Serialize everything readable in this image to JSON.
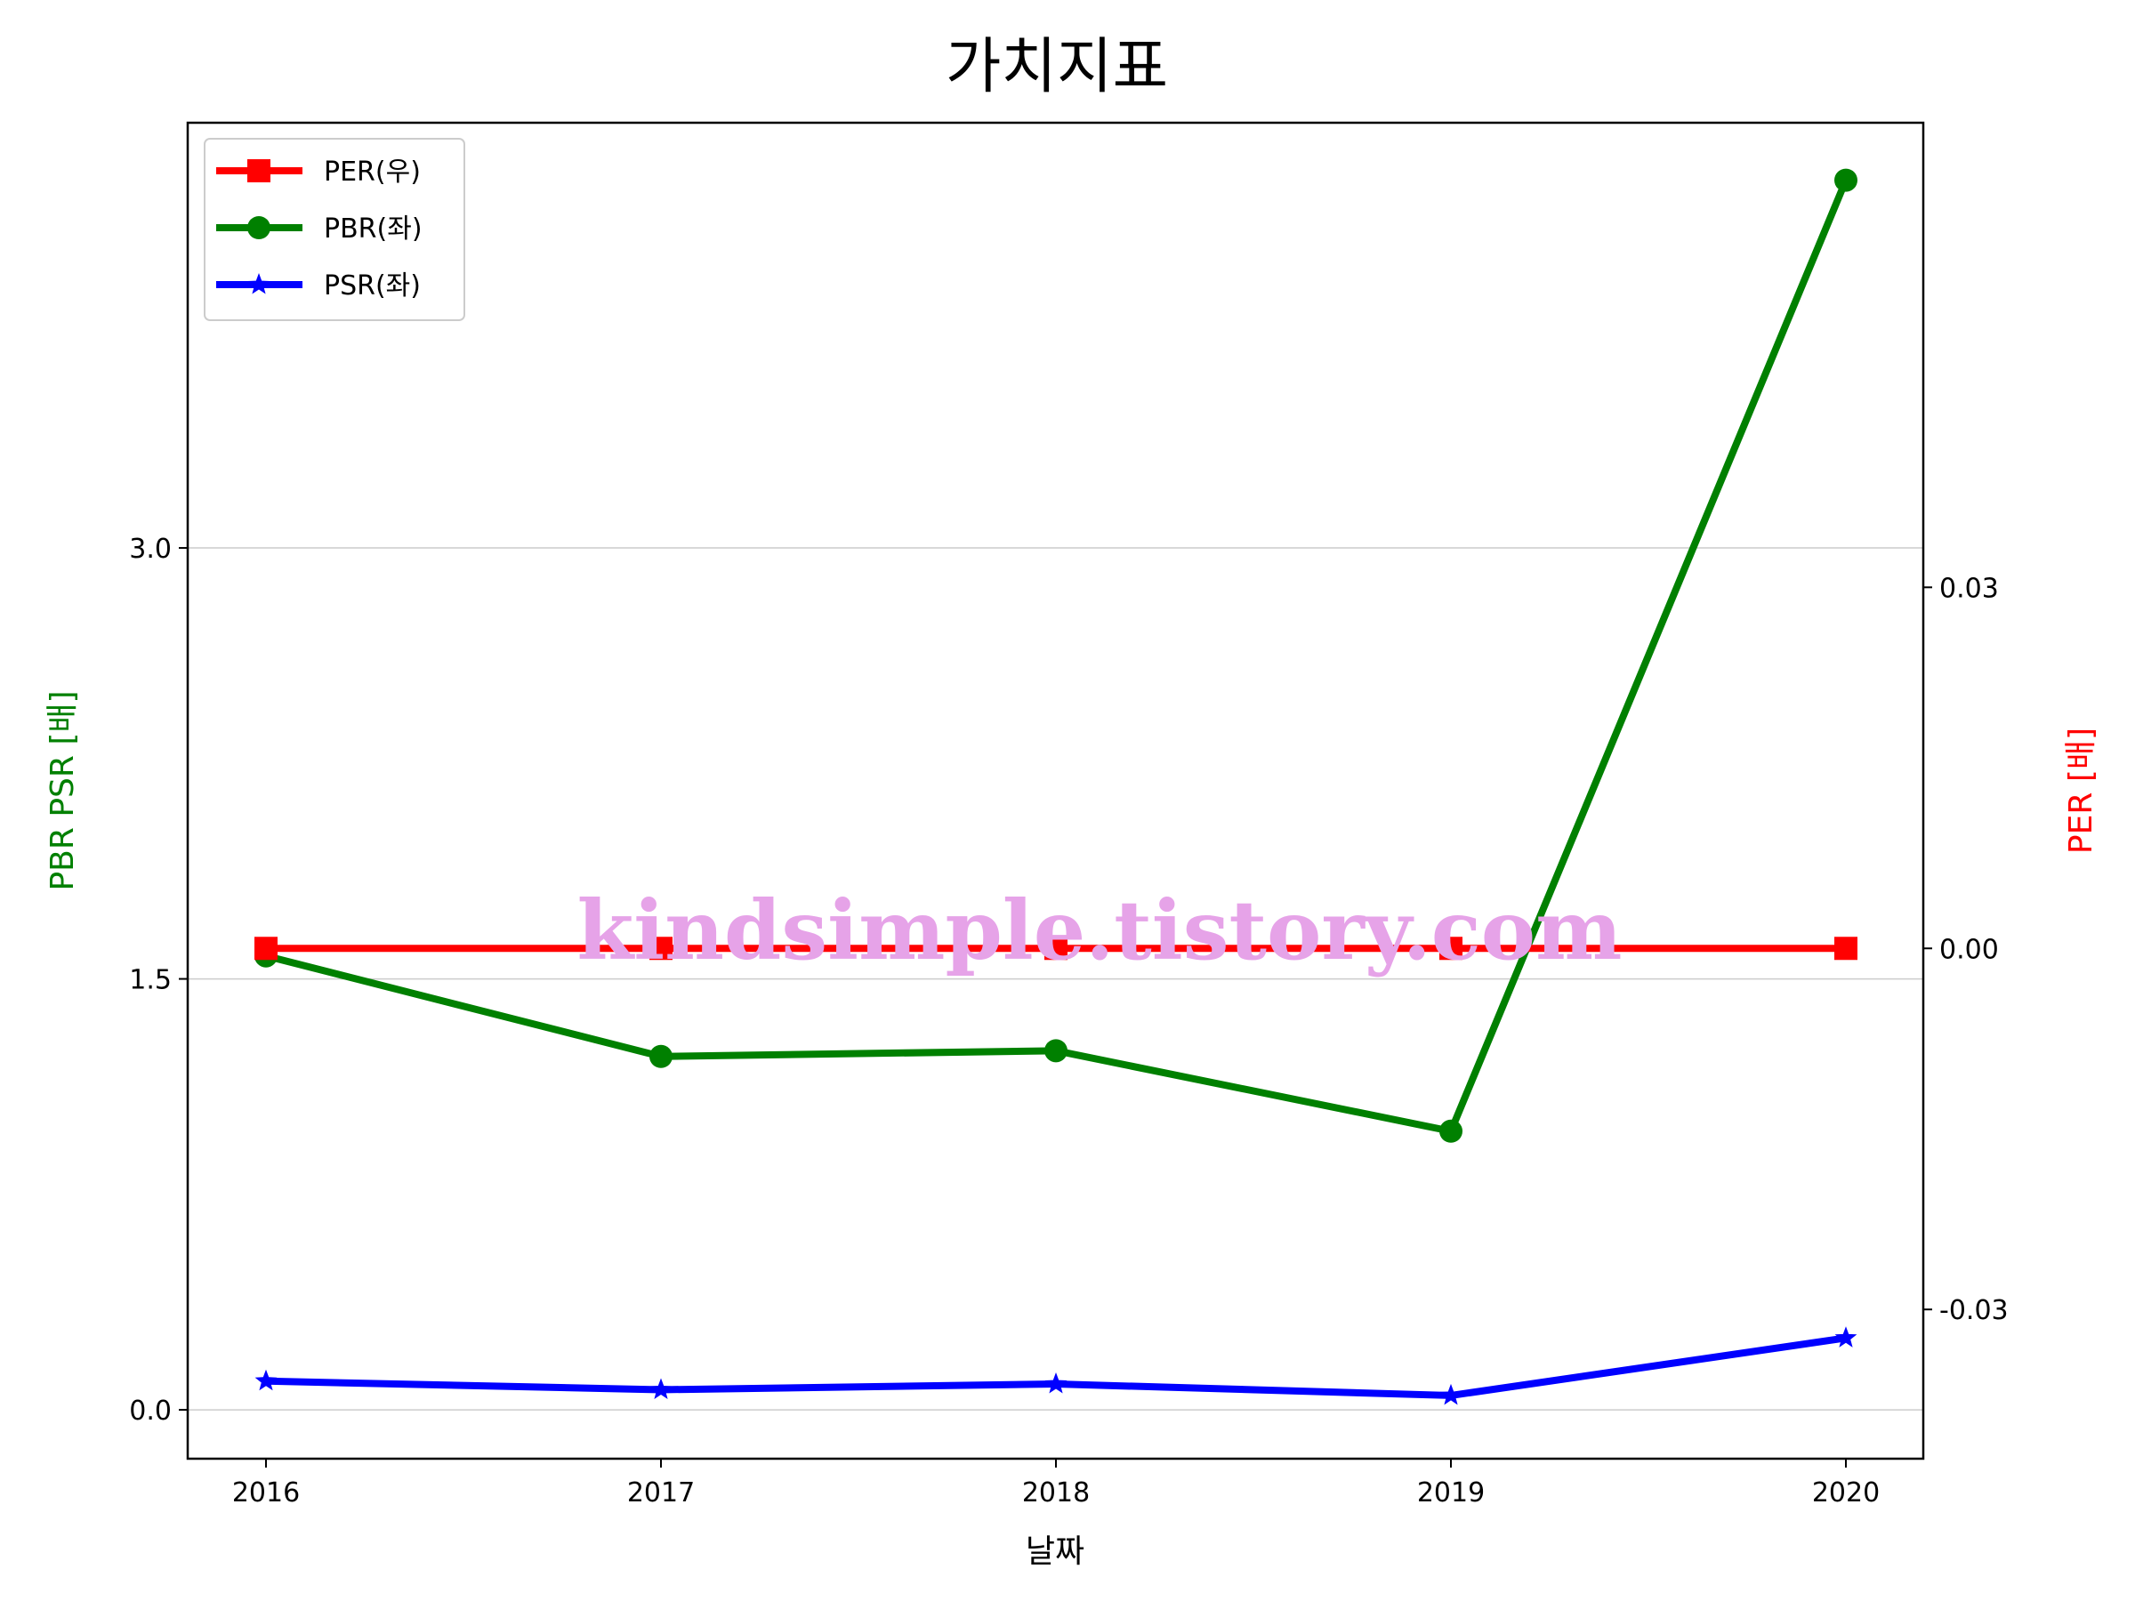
{
  "chart_data": {
    "type": "line",
    "title": "가치지표",
    "xlabel": "날짜",
    "ylabel_left": "PBR PSR [배]",
    "ylabel_right": "PER [배]",
    "categories": [
      "2016",
      "2017",
      "2018",
      "2019",
      "2020"
    ],
    "left_axis": {
      "ylim": [
        -0.17,
        4.48
      ],
      "ticks": [
        0.0,
        1.5,
        3.0
      ],
      "tick_labels": [
        "0.0",
        "1.5",
        "3.0"
      ]
    },
    "right_axis": {
      "ylim": [
        -0.0424,
        0.0686
      ],
      "ticks": [
        -0.03,
        0.0,
        0.03
      ],
      "tick_labels": [
        "-0.03",
        "0.00",
        "0.03"
      ]
    },
    "series": [
      {
        "name": "PER(우)",
        "axis": "right",
        "color": "#ff0000",
        "marker": "square",
        "values": [
          0.0,
          0.0,
          0.0,
          0.0,
          0.0
        ]
      },
      {
        "name": "PBR(좌)",
        "axis": "left",
        "color": "#008000",
        "marker": "circle",
        "values": [
          1.58,
          1.23,
          1.25,
          0.97,
          4.28
        ]
      },
      {
        "name": "PSR(좌)",
        "axis": "left",
        "color": "#0000ff",
        "marker": "star",
        "values": [
          0.1,
          0.07,
          0.09,
          0.05,
          0.25
        ]
      }
    ],
    "grid": "horizontal (left axis)",
    "legend_position": "upper-left",
    "watermark": "kindsimple.tistory.com"
  }
}
